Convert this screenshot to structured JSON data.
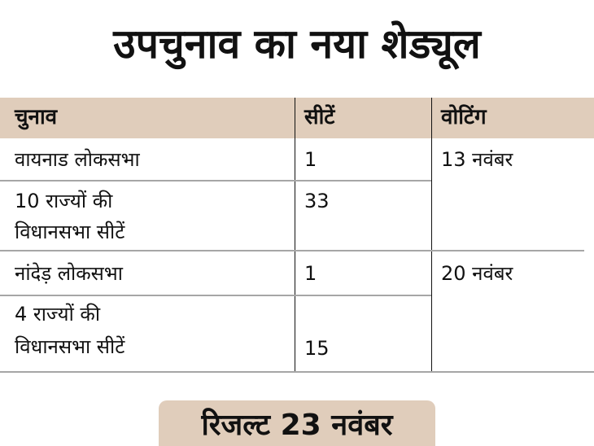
{
  "title": "उपचुनाव का नया शेड्यूल",
  "table": {
    "headers": [
      "चुनाव",
      "सीटें",
      "वोटिंग"
    ],
    "rows": [
      {
        "election": "वायनाड लोकसभा",
        "seats": "1"
      },
      {
        "election_line1": "10 राज्यों की",
        "election_line2": "विधानसभा सीटें",
        "seats": "33"
      },
      {
        "election": "नांदेड़ लोकसभा",
        "seats": "1"
      },
      {
        "election_line1": "4 राज्यों की",
        "election_line2": "विधानसभा सीटें",
        "seats": "15"
      }
    ],
    "voting": [
      "13 नवंबर",
      "20 नवंबर"
    ]
  },
  "result": "रिजल्ट 23 नवंबर",
  "colors": {
    "header_bg": "#e0cdbb",
    "badge_bg": "#e0cdbb",
    "rule": "#a6a6a6"
  }
}
